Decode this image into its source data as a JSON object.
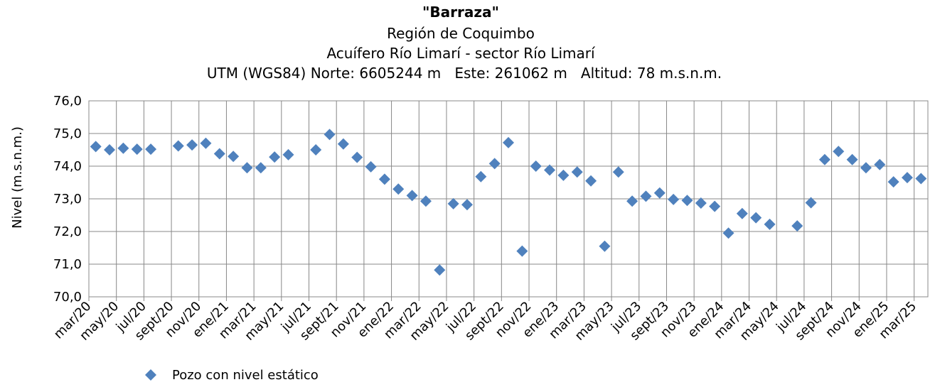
{
  "chart_data": {
    "type": "scatter",
    "title": "\"Barraza\"",
    "subtitle": [
      "Región de Coquimbo",
      "Acuífero Río Limarí - sector Río Limarí",
      "UTM (WGS84) Norte: 6605244 m   Este: 261062 m   Altitud: 78 m.s.n.m."
    ],
    "y_label": "Nivel (m.s.n.m.)",
    "categories": [
      "mar/20",
      null,
      "may/20",
      null,
      "jul/20",
      null,
      "sept/20",
      null,
      "nov/20",
      null,
      "ene/21",
      null,
      "mar/21",
      null,
      "may/21",
      null,
      "jul/21",
      null,
      "sept/21",
      null,
      "nov/21",
      null,
      "ene/22",
      null,
      "mar/22",
      null,
      "may/22",
      null,
      "jul/22",
      null,
      "sept/22",
      null,
      "nov/22",
      null,
      "ene/23",
      null,
      "mar/23",
      null,
      "may/23",
      null,
      "jul/23",
      null,
      "sept/23",
      null,
      "nov/23",
      null,
      "ene/24",
      null,
      "mar/24",
      null,
      "may/24",
      null,
      "jul/24",
      null,
      "sept/24",
      null,
      "nov/24",
      null,
      "ene/25",
      null,
      "mar/25"
    ],
    "series": [
      {
        "name": "Pozo con nivel estático",
        "color": "#4f81bd",
        "values": [
          74.6,
          74.5,
          74.55,
          74.52,
          74.52,
          null,
          74.62,
          74.65,
          74.7,
          74.38,
          74.3,
          73.95,
          73.95,
          74.28,
          74.35,
          null,
          74.5,
          74.97,
          74.68,
          74.27,
          73.98,
          73.6,
          73.3,
          73.1,
          72.93,
          70.82,
          72.85,
          72.82,
          73.68,
          74.08,
          74.72,
          71.4,
          74.0,
          73.88,
          73.72,
          73.82,
          73.55,
          71.55,
          73.82,
          72.93,
          73.08,
          73.18,
          72.98,
          72.95,
          72.87,
          72.77,
          71.95,
          72.55,
          72.42,
          72.22,
          null,
          72.17,
          72.88,
          74.2,
          74.45,
          74.2,
          73.95,
          74.05,
          73.52,
          73.65,
          73.62
        ]
      }
    ],
    "ylim": [
      70,
      76
    ],
    "yticks": [
      {
        "value": 70,
        "label": "70,0"
      },
      {
        "value": 71,
        "label": "71,0"
      },
      {
        "value": 72,
        "label": "72,0"
      },
      {
        "value": 73,
        "label": "73,0"
      },
      {
        "value": 74,
        "label": "74,0"
      },
      {
        "value": 75,
        "label": "75,0"
      },
      {
        "value": 76,
        "label": "76,0"
      }
    ],
    "grid": true
  }
}
